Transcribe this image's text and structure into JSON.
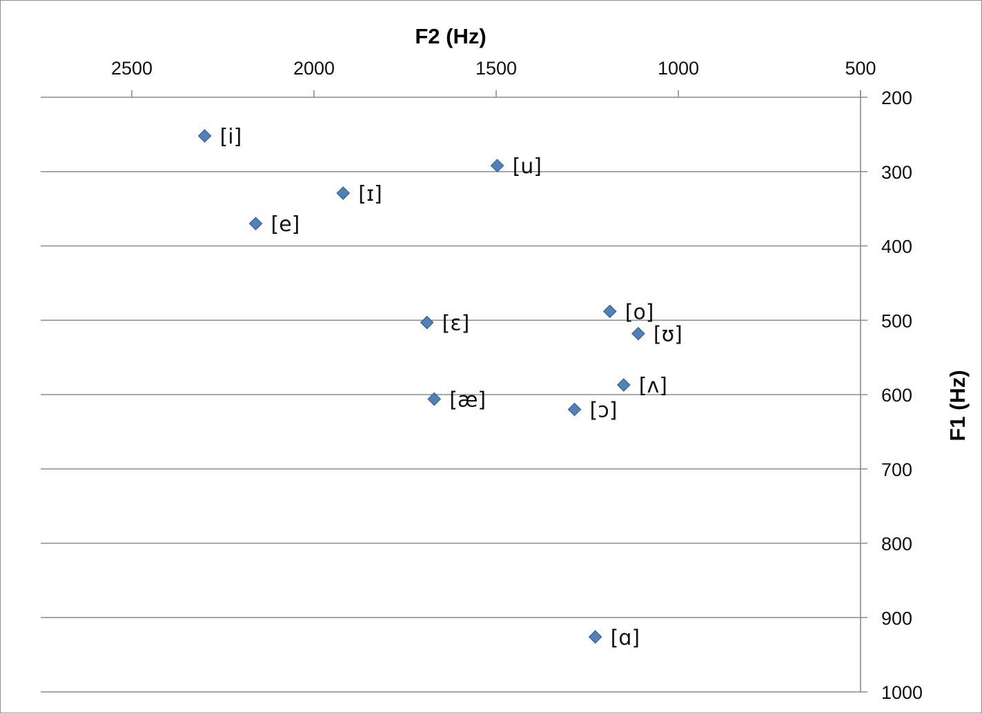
{
  "chart_data": {
    "type": "scatter",
    "xlabel": "F2 (Hz)",
    "ylabel": "F1 (Hz)",
    "xlim": [
      2750,
      500
    ],
    "ylim": [
      200,
      1000
    ],
    "x_axis_position": "top",
    "y_axis_position": "right",
    "x_reversed": true,
    "y_reversed": true,
    "x_ticks": [
      2500,
      2000,
      1500,
      1000,
      500
    ],
    "y_ticks": [
      200,
      300,
      400,
      500,
      600,
      700,
      800,
      900,
      1000
    ],
    "grid": "horizontal",
    "marker": "diamond",
    "marker_color": "#4f81bd",
    "points": [
      {
        "label": "[i]",
        "x": 2300,
        "y": 252
      },
      {
        "label": "[u]",
        "x": 1497,
        "y": 292
      },
      {
        "label": "[ɪ]",
        "x": 1920,
        "y": 329
      },
      {
        "label": "[e]",
        "x": 2160,
        "y": 370
      },
      {
        "label": "[o]",
        "x": 1188,
        "y": 488
      },
      {
        "label": "[ɛ]",
        "x": 1690,
        "y": 503
      },
      {
        "label": "[ʊ]",
        "x": 1110,
        "y": 518
      },
      {
        "label": "[ʌ]",
        "x": 1150,
        "y": 587
      },
      {
        "label": "[æ]",
        "x": 1670,
        "y": 606
      },
      {
        "label": "[ɔ]",
        "x": 1285,
        "y": 620
      },
      {
        "label": "[ɑ]",
        "x": 1228,
        "y": 926
      }
    ]
  }
}
